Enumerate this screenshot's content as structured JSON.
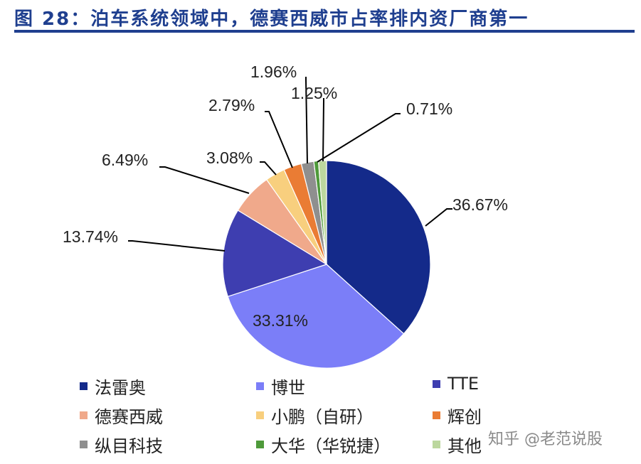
{
  "title": "图 28：泊车系统领域中，德赛西威市占率排内资厂商第一",
  "watermark": "知乎 @老范说股",
  "chart_data": {
    "type": "pie",
    "title": "",
    "start": "12 o'clock, clockwise",
    "slices": [
      {
        "label": "法雷奥",
        "value": 36.67,
        "display": "36.67%",
        "color": "#142a8a"
      },
      {
        "label": "博世",
        "value": 33.31,
        "display": "33.31%",
        "color": "#7b7ef8"
      },
      {
        "label": "TTE",
        "value": 13.74,
        "display": "13.74%",
        "color": "#3e3eb0"
      },
      {
        "label": "德赛西威",
        "value": 6.49,
        "display": "6.49%",
        "color": "#f0a98b"
      },
      {
        "label": "小鹏（自研）",
        "value": 3.08,
        "display": "3.08%",
        "color": "#f8cf7e"
      },
      {
        "label": "辉创",
        "value": 2.79,
        "display": "2.79%",
        "color": "#ea7c34"
      },
      {
        "label": "纵目科技",
        "value": 1.96,
        "display": "1.96%",
        "color": "#8f8f8f"
      },
      {
        "label": "大华（华锐捷）",
        "value": 0.71,
        "display": "0.71%",
        "color": "#4e9a3a"
      },
      {
        "label": "其他",
        "value": 1.25,
        "display": "1.25%",
        "color": "#bcd79e"
      }
    ],
    "legend_position": "bottom"
  }
}
